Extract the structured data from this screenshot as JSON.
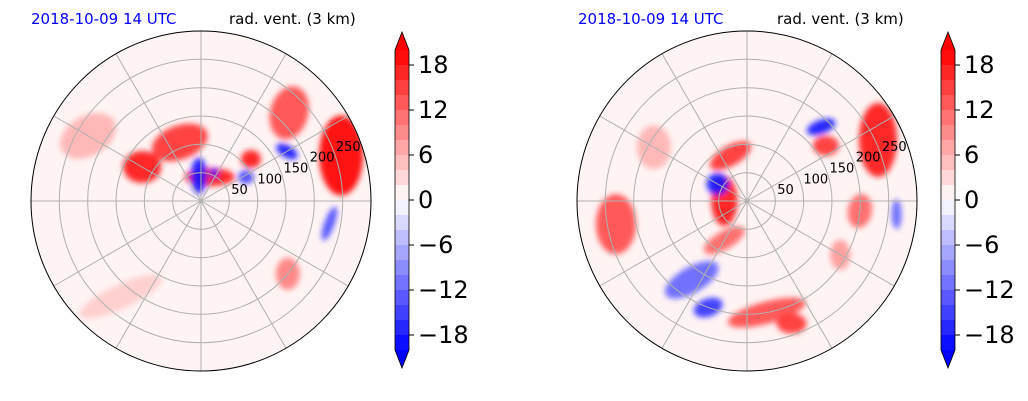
{
  "panels": [
    {
      "timestamp": "2018-10-09 14 UTC",
      "field_label": "rad. vent. (3 km)",
      "range_ring_labels": [
        "50",
        "100",
        "150",
        "200",
        "250"
      ],
      "colorbar": {
        "tick_labels": [
          "18",
          "12",
          "6",
          "0",
          "−6",
          "−12",
          "−18"
        ],
        "tick_values": [
          18,
          12,
          6,
          0,
          -6,
          -12,
          -18
        ]
      }
    },
    {
      "timestamp": "2018-10-09 14 UTC",
      "field_label": "rad. vent. (3 km)",
      "range_ring_labels": [
        "50",
        "100",
        "150",
        "200",
        "250"
      ],
      "colorbar": {
        "tick_labels": [
          "18",
          "12",
          "6",
          "0",
          "−6",
          "−12",
          "−18"
        ],
        "tick_values": [
          18,
          12,
          6,
          0,
          -6,
          -12,
          -18
        ]
      }
    }
  ],
  "colors": {
    "timestamp": "#0000ff",
    "positive": "#ff0000",
    "negative": "#0000ff",
    "neutral": "#ffffff",
    "grid": "#b0b0b0"
  },
  "chart_data": [
    {
      "type": "heatmap",
      "projection": "polar",
      "title": "2018-10-09 14 UTC",
      "subtitle": "rad. vent. (3 km)",
      "range_rings": [
        50,
        100,
        150,
        200,
        250
      ],
      "rmax": 300,
      "azimuth_lines_deg": [
        0,
        30,
        60,
        90,
        120,
        150,
        180,
        210,
        240,
        270,
        300,
        330
      ],
      "color_scale": {
        "min": -20,
        "max": 20,
        "step": 2,
        "extend": "both",
        "colormap": "bwr"
      },
      "features": [
        {
          "az": 20,
          "r": 45,
          "w": 50,
          "h": 18,
          "rot": 0,
          "v": 18
        },
        {
          "az": 355,
          "r": 45,
          "w": 16,
          "h": 36,
          "rot": 0,
          "v": -18
        },
        {
          "az": 340,
          "r": 110,
          "w": 58,
          "h": 34,
          "rot": -20,
          "v": 16
        },
        {
          "az": 50,
          "r": 115,
          "w": 20,
          "h": 18,
          "rot": 0,
          "v": 18
        },
        {
          "az": 300,
          "r": 120,
          "w": 38,
          "h": 32,
          "rot": 0,
          "v": 18
        },
        {
          "az": 45,
          "r": 220,
          "w": 38,
          "h": 54,
          "rot": 15,
          "v": 14
        },
        {
          "az": 72,
          "r": 260,
          "w": 44,
          "h": 80,
          "rot": 0,
          "v": 20
        },
        {
          "az": 60,
          "r": 175,
          "w": 24,
          "h": 12,
          "rot": 30,
          "v": -18
        },
        {
          "az": 62,
          "r": 90,
          "w": 16,
          "h": 14,
          "rot": 0,
          "v": -14
        },
        {
          "az": 100,
          "r": 230,
          "w": 10,
          "h": 36,
          "rot": 20,
          "v": -14
        },
        {
          "az": 300,
          "r": 230,
          "w": 60,
          "h": 40,
          "rot": -30,
          "v": 6
        },
        {
          "az": 220,
          "r": 220,
          "w": 90,
          "h": 24,
          "rot": -25,
          "v": 4
        },
        {
          "az": 130,
          "r": 200,
          "w": 24,
          "h": 32,
          "rot": 0,
          "v": 10
        },
        {
          "az": 25,
          "r": 55,
          "w": 8,
          "h": 10,
          "rot": 0,
          "v": -18
        }
      ]
    },
    {
      "type": "heatmap",
      "projection": "polar",
      "title": "2018-10-09 14 UTC",
      "subtitle": "rad. vent. (3 km)",
      "range_rings": [
        50,
        100,
        150,
        200,
        250
      ],
      "rmax": 300,
      "azimuth_lines_deg": [
        0,
        30,
        60,
        90,
        120,
        150,
        180,
        210,
        240,
        270,
        300,
        330
      ],
      "color_scale": {
        "min": -20,
        "max": 20,
        "step": 2,
        "extend": "both",
        "colormap": "bwr"
      },
      "features": [
        {
          "az": 340,
          "r": 85,
          "w": 46,
          "h": 20,
          "rot": -30,
          "v": 16
        },
        {
          "az": 270,
          "r": 40,
          "w": 26,
          "h": 50,
          "rot": 0,
          "v": 18
        },
        {
          "az": 300,
          "r": 60,
          "w": 22,
          "h": 22,
          "rot": 0,
          "v": -18
        },
        {
          "az": 210,
          "r": 80,
          "w": 46,
          "h": 18,
          "rot": -30,
          "v": 12
        },
        {
          "az": 45,
          "r": 185,
          "w": 30,
          "h": 14,
          "rot": -20,
          "v": -18
        },
        {
          "az": 55,
          "r": 170,
          "w": 26,
          "h": 20,
          "rot": 0,
          "v": 16
        },
        {
          "az": 65,
          "r": 255,
          "w": 38,
          "h": 74,
          "rot": 0,
          "v": 18
        },
        {
          "az": 95,
          "r": 200,
          "w": 24,
          "h": 34,
          "rot": 10,
          "v": 12
        },
        {
          "az": 260,
          "r": 235,
          "w": 40,
          "h": 60,
          "rot": 0,
          "v": 14
        },
        {
          "az": 215,
          "r": 170,
          "w": 60,
          "h": 26,
          "rot": -30,
          "v": -12
        },
        {
          "az": 170,
          "r": 200,
          "w": 80,
          "h": 22,
          "rot": -15,
          "v": 14
        },
        {
          "az": 160,
          "r": 230,
          "w": 30,
          "h": 20,
          "rot": 0,
          "v": 16
        },
        {
          "az": 200,
          "r": 200,
          "w": 30,
          "h": 18,
          "rot": -20,
          "v": -16
        },
        {
          "az": 120,
          "r": 190,
          "w": 20,
          "h": 30,
          "rot": 0,
          "v": 8
        },
        {
          "az": 300,
          "r": 190,
          "w": 34,
          "h": 44,
          "rot": 0,
          "v": 6
        },
        {
          "az": 95,
          "r": 265,
          "w": 10,
          "h": 30,
          "rot": 0,
          "v": -12
        }
      ]
    }
  ]
}
